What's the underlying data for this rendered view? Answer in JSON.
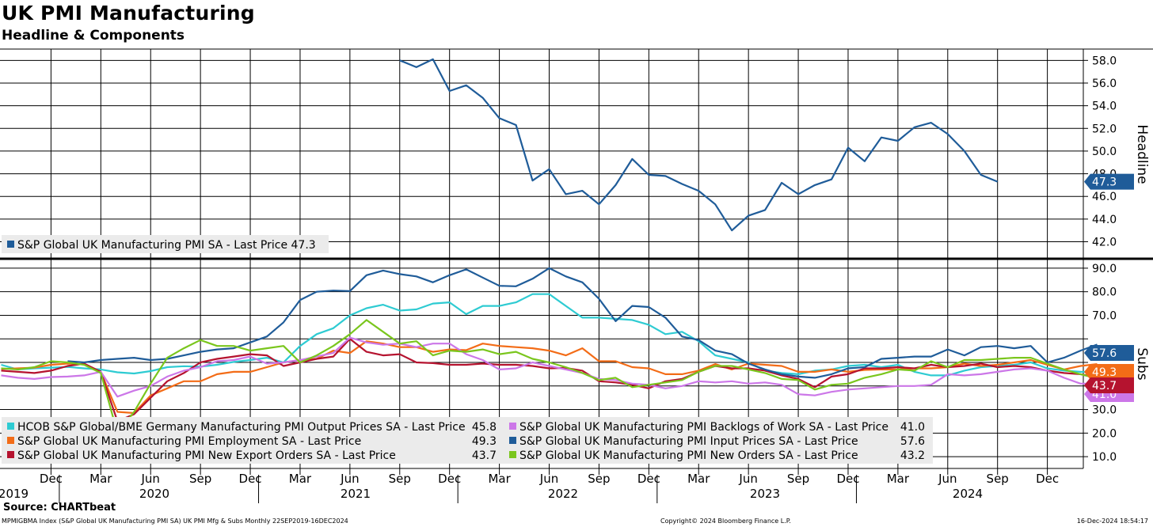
{
  "title": "UK PMI Manufacturing",
  "subtitle": "Headline & Components",
  "footer": {
    "source": "Source: CHARTbeat",
    "left": "MPMIGBMA Index (S&P Global UK Manufacturing PMI SA) UK PMI Mfg & Subs  Monthly 22SEP2019-16DEC2024",
    "center": "Copyright© 2024 Bloomberg Finance L.P.",
    "right": "16-Dec-2024 18:54:17"
  },
  "colors": {
    "navy": "#1F5C99",
    "cyan": "#2ECBD2",
    "orange": "#F36C17",
    "red": "#B5132F",
    "violet": "#CC77E8",
    "green": "#7AC61D",
    "grid": "#000000",
    "legend_bg": "#EBEBEB"
  },
  "chart_data": [
    {
      "type": "line",
      "panel": "top",
      "axis_title": "Headline",
      "ylim": [
        40.5,
        59
      ],
      "yticks": [
        42.0,
        44.0,
        46.0,
        48.0,
        50.0,
        52.0,
        54.0,
        56.0,
        58.0
      ],
      "ytick_labels": [
        "42.0",
        "44.0",
        "46.0",
        "48.0",
        "50.0",
        "52.0",
        "54.0",
        "56.0",
        "58.0"
      ],
      "series": [
        {
          "name": "S&P Global UK Manufacturing PMI SA",
          "legend": "S&P Global UK Manufacturing PMI SA - Last Price 47.3",
          "color_key": "navy",
          "last_label": "47.3",
          "start_index": 24,
          "values": [
            58.0,
            57.4,
            58.1,
            55.3,
            55.8,
            54.7,
            52.9,
            52.3,
            47.4,
            48.4,
            46.2,
            46.5,
            45.3,
            47.0,
            49.3,
            47.9,
            47.8,
            47.1,
            46.5,
            45.3,
            43.0,
            44.3,
            44.8,
            47.2,
            46.2,
            47.0,
            47.5,
            50.3,
            49.1,
            51.2,
            50.9,
            52.1,
            52.5,
            51.5,
            50.0,
            47.9,
            47.3
          ]
        }
      ]
    },
    {
      "type": "line",
      "panel": "bottom",
      "axis_title": "Subs",
      "ylim": [
        5,
        94
      ],
      "yticks": [
        10,
        20,
        30,
        40,
        50,
        60,
        70,
        80,
        90
      ],
      "ytick_labels": [
        "10.0",
        "20.0",
        "30.0",
        "",
        "",
        "",
        "70.0",
        "80.0",
        "90.0"
      ],
      "series": [
        {
          "name": "HCOB S&P Global/BME Germany Manufacturing PMI Output Prices SA",
          "legend_name": "HCOB S&P Global/BME Germany Manufacturing PMI Output Prices SA - Last Price",
          "last": "45.8",
          "color_key": "cyan",
          "values": [
            49,
            47,
            47.5,
            47.8,
            48.1,
            47.5,
            47,
            45.8,
            45.3,
            46.3,
            48,
            48.4,
            48.2,
            49,
            50.2,
            51,
            52,
            50,
            57,
            62,
            64.5,
            70,
            73,
            74.5,
            72,
            72.5,
            75,
            75.5,
            70.5,
            74,
            74,
            75.5,
            79,
            79,
            74,
            69,
            69,
            68.5,
            68,
            66,
            62,
            63,
            59,
            53,
            51.5,
            50,
            46.5,
            45.5,
            45,
            46.5,
            47,
            48.5,
            49,
            48,
            49,
            46,
            44.5,
            44.5,
            46.5,
            48,
            48.5,
            49,
            50,
            47.5,
            46.5,
            46,
            45.8
          ]
        },
        {
          "name": "S&P Global UK Manufacturing PMI Employment SA",
          "legend_name": "S&P Global UK Manufacturing PMI Employment SA - Last Price",
          "last": "49.3",
          "color_key": "orange",
          "values": [
            47.2,
            47.5,
            47.8,
            49,
            49.5,
            49.2,
            46,
            29,
            28.5,
            36,
            39,
            42,
            42,
            45,
            46,
            46,
            48,
            50,
            51,
            51.5,
            55,
            54,
            59,
            58,
            56.5,
            56.5,
            54.5,
            55.5,
            55.2,
            58,
            57,
            56.5,
            56,
            55,
            53,
            56,
            50.5,
            50.5,
            48,
            47.5,
            45,
            45,
            46.5,
            49.3,
            47,
            49.5,
            49,
            48.5,
            46,
            46,
            47,
            46,
            46.8,
            47,
            47,
            47.5,
            47.5,
            48,
            49.5,
            48.5,
            49,
            50,
            51,
            49,
            47,
            48.5,
            49.3
          ]
        },
        {
          "name": "S&P Global UK Manufacturing PMI New Export Orders SA",
          "legend_name": "S&P Global UK Manufacturing PMI New Export Orders SA - Last Price",
          "last": "43.7",
          "color_key": "red",
          "values": [
            46.5,
            46,
            45.5,
            46.5,
            48.5,
            49.5,
            46,
            25,
            28,
            35,
            42,
            45.5,
            50,
            51.5,
            52.5,
            53.5,
            53,
            48.5,
            50,
            51.5,
            52.5,
            60,
            54.5,
            53,
            53.5,
            50,
            49.7,
            49,
            49,
            49.5,
            49,
            49,
            48.5,
            47.5,
            47.7,
            46.5,
            42,
            41.5,
            40.5,
            39,
            42,
            43,
            46,
            48.5,
            47.5,
            47.5,
            46.5,
            44.5,
            43,
            39.5,
            44,
            45,
            47.5,
            47.5,
            48,
            47.5,
            49,
            48,
            48.5,
            49.5,
            48,
            48.5,
            48,
            46.5,
            45.5,
            45,
            43.7
          ]
        },
        {
          "name": "S&P Global UK Manufacturing PMI Backlogs of Work SA",
          "legend_name": "S&P Global UK Manufacturing PMI Backlogs of Work SA - Last Price",
          "last": "41.0",
          "color_key": "violet",
          "values": [
            44.5,
            43.5,
            43,
            43.8,
            44,
            44.5,
            46,
            35.5,
            38,
            40,
            44,
            46.5,
            48,
            50.5,
            51,
            52.5,
            49.5,
            50,
            51,
            52.5,
            54,
            60.5,
            58.5,
            57.5,
            58,
            56.5,
            58,
            58,
            53.5,
            51,
            47,
            47.5,
            50,
            48.5,
            47,
            45.5,
            43,
            42.5,
            41,
            40.5,
            39,
            40,
            42,
            41.5,
            42,
            41,
            41.5,
            40.5,
            36.5,
            36,
            37.5,
            38.5,
            39,
            39.5,
            40,
            40,
            40.5,
            45,
            44.5,
            45,
            46,
            47,
            47.5,
            46.5,
            43.5,
            41,
            41.0
          ]
        },
        {
          "name": "S&P Global UK Manufacturing PMI Input Prices SA",
          "legend_name": "S&P Global UK Manufacturing PMI Input Prices SA - Last Price",
          "last": "57.6",
          "color_key": "navy",
          "values": [
            50.5,
            50,
            51,
            51.5,
            52,
            51,
            51.5,
            53,
            54.5,
            55.5,
            56,
            58.5,
            61,
            67,
            76.5,
            80,
            80.5,
            80.3,
            87,
            89,
            87.5,
            86.5,
            84,
            87,
            89.5,
            86,
            82.5,
            82.3,
            85.5,
            90,
            86.5,
            84,
            77,
            67.5,
            74,
            73.5,
            69,
            61,
            59.5,
            55,
            53.5,
            49.5,
            47,
            45,
            44,
            43.5,
            45,
            47.5,
            48,
            51.5,
            52,
            52.5,
            52.5,
            55.5,
            53,
            56.5,
            57,
            56,
            57,
            50,
            52,
            55,
            57.6
          ]
        },
        {
          "name": "S&P Global UK Manufacturing PMI New Orders SA",
          "legend_name": "S&P Global UK Manufacturing PMI New Orders SA - Last Price",
          "last": "43.2",
          "color_key": "green",
          "values": [
            47.5,
            47,
            48,
            50.5,
            50,
            49,
            45.5,
            20,
            29,
            41,
            52,
            56,
            59.5,
            57,
            57,
            55,
            56,
            57,
            50,
            53,
            57,
            62,
            68,
            63,
            58,
            59,
            53,
            55,
            54.5,
            55.5,
            53.5,
            54.5,
            51.5,
            50,
            48,
            45.5,
            42.5,
            43.5,
            39.5,
            40.5,
            41.5,
            42.5,
            46,
            48.5,
            48.5,
            47,
            45.5,
            43,
            42.5,
            38.5,
            40.5,
            41,
            43.5,
            45,
            47,
            46.5,
            50.5,
            48,
            51,
            51,
            51.5,
            52,
            52,
            49.5,
            47,
            45,
            43.2
          ]
        }
      ]
    }
  ],
  "x_axis": {
    "month_labels": [
      "Dec",
      "Mar",
      "Jun",
      "Sep",
      "Dec",
      "Mar",
      "Jun",
      "Sep",
      "Dec",
      "Mar",
      "Jun",
      "Sep",
      "Dec",
      "Mar",
      "Jun",
      "Sep",
      "Dec",
      "Mar",
      "Jun",
      "Sep",
      "Dec"
    ],
    "year_labels": [
      "2019",
      "2020",
      "2021",
      "2022",
      "2023",
      "2024"
    ]
  }
}
